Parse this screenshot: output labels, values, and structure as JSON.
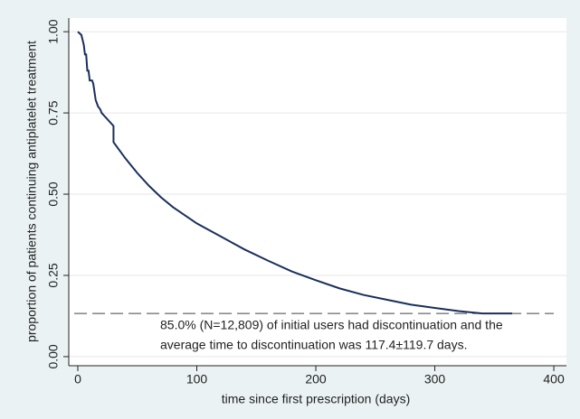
{
  "chart_data": {
    "type": "line",
    "xlabel": "time since first prescription (days)",
    "ylabel": "proportion of patients continuing antiplatelet treatment",
    "series": [
      {
        "color": "#1a2f5a",
        "x": [
          0,
          3,
          5,
          6,
          7,
          8,
          9,
          10,
          12,
          13,
          15,
          16,
          17,
          19,
          20,
          25,
          30,
          30,
          35,
          40,
          50,
          60,
          70,
          80,
          90,
          100,
          120,
          140,
          160,
          180,
          200,
          220,
          240,
          260,
          280,
          300,
          320,
          340,
          365
        ],
        "values": [
          1.0,
          0.99,
          0.96,
          0.93,
          0.93,
          0.88,
          0.88,
          0.85,
          0.85,
          0.84,
          0.79,
          0.78,
          0.77,
          0.76,
          0.75,
          0.73,
          0.71,
          0.66,
          0.635,
          0.61,
          0.565,
          0.525,
          0.49,
          0.46,
          0.435,
          0.41,
          0.37,
          0.33,
          0.295,
          0.262,
          0.235,
          0.21,
          0.19,
          0.175,
          0.16,
          0.15,
          0.14,
          0.133,
          0.133
        ]
      }
    ],
    "reference_line": {
      "y": 0.133,
      "x": [
        -3,
        400
      ]
    },
    "annotations": [
      "85.0% (N=12,809) of initial users had discontinuation and the",
      "average time to discontinuation was 117.4±119.7 days."
    ],
    "xlim": [
      -7.6,
      410.6
    ],
    "ylim": [
      -0.028,
      1.042
    ],
    "xticks": [
      0,
      100,
      200,
      300,
      400
    ],
    "yticks": [
      {
        "value": 0,
        "label": "0.00"
      },
      {
        "value": 0.25,
        "label": "0.25"
      },
      {
        "value": 0.5,
        "label": "0.50"
      },
      {
        "value": 0.75,
        "label": "0.75"
      },
      {
        "value": 1,
        "label": "1.00"
      }
    ],
    "grid": true
  }
}
